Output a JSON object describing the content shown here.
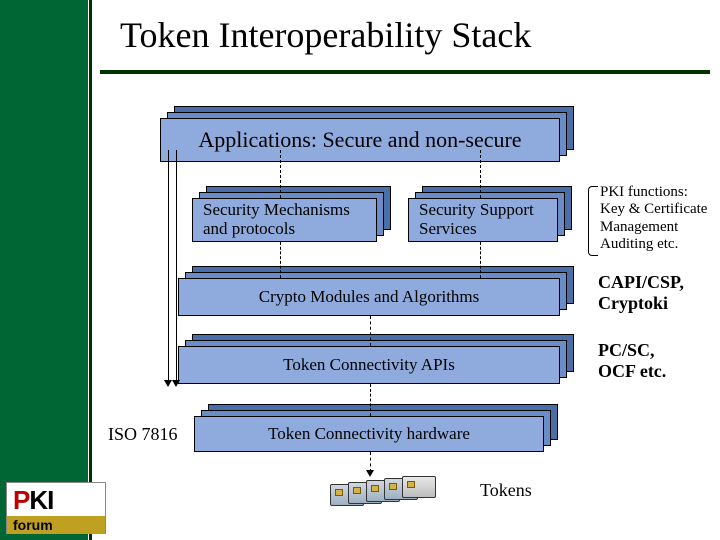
{
  "title": "Token Interoperability Stack",
  "colors": {
    "band": "#006633",
    "bandEdge": "#003300",
    "boxFront": "#8faadc",
    "boxShadow1": "#6a8cc7",
    "boxShadow2": "#4a6ea8",
    "borderDark": "#000000",
    "bg": "#ffffff"
  },
  "boxes": {
    "applications": {
      "text": "Applications: Secure and non-secure",
      "fontsize": 22
    },
    "mechanisms": {
      "text": "Security Mechanisms and protocols"
    },
    "support": {
      "text": "Security Support Services"
    },
    "crypto": {
      "text": "Crypto Modules and Algorithms"
    },
    "tokenApi": {
      "text": "Token Connectivity APIs"
    },
    "tokenHw": {
      "text": "Token Connectivity hardware"
    }
  },
  "annotations": {
    "pki": "PKI functions:\nKey & Certificate\nManagement\nAuditing etc.",
    "capi": "CAPI/CSP,\nCryptoki",
    "pcsc": "PC/SC,\nOCF etc.",
    "iso": "ISO 7816",
    "tokens": "Tokens"
  },
  "logo": {
    "p": "P",
    "ki": "KI",
    "forum": "forum"
  },
  "layout": {
    "shadowOffsetX": 7,
    "shadowOffsetY": -6,
    "boxHeight": 44
  }
}
